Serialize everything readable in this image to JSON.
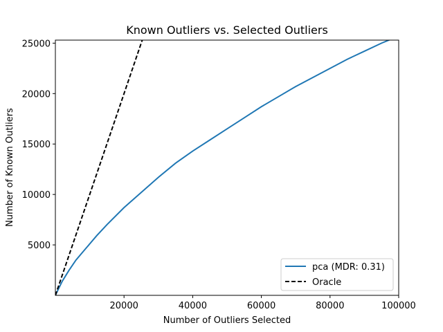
{
  "chart_data": {
    "type": "line",
    "title": "Known Outliers vs. Selected Outliers",
    "xlabel": "Number of Outliers Selected",
    "ylabel": "Number of Known Outliers",
    "xlim": [
      0,
      100000
    ],
    "ylim": [
      0,
      25300
    ],
    "xticks": [
      20000,
      40000,
      60000,
      80000,
      100000
    ],
    "yticks": [
      5000,
      10000,
      15000,
      20000,
      25000
    ],
    "grid": false,
    "legend_position": "lower-right",
    "series": [
      {
        "name": "pca (MDR: 0.31)",
        "color": "#1f77b4",
        "style": "solid",
        "x": [
          0,
          2000,
          4000,
          6000,
          8000,
          10000,
          12000,
          15000,
          20000,
          25000,
          30000,
          35000,
          40000,
          45000,
          50000,
          55000,
          60000,
          65000,
          70000,
          75000,
          80000,
          85000,
          90000,
          95000,
          100000
        ],
        "y": [
          0,
          1400,
          2500,
          3500,
          4300,
          5100,
          5900,
          7000,
          8700,
          10200,
          11700,
          13100,
          14300,
          15400,
          16500,
          17600,
          18700,
          19700,
          20700,
          21600,
          22500,
          23400,
          24200,
          25000,
          25700
        ]
      },
      {
        "name": "Oracle",
        "color": "#000000",
        "style": "dashed",
        "x": [
          0,
          25300
        ],
        "y": [
          0,
          25300
        ]
      }
    ]
  }
}
